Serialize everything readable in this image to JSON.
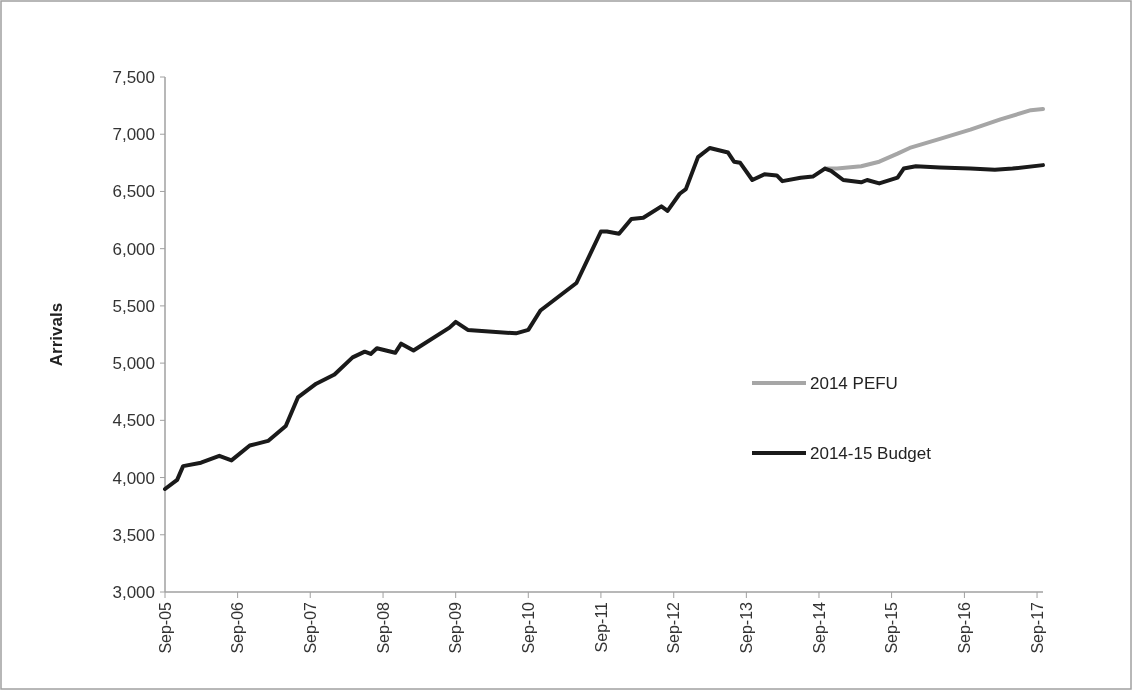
{
  "chart_data": {
    "type": "line",
    "ylabel": "Arrivals",
    "xlim": [
      "2005-09",
      "2017-10"
    ],
    "xticks": [
      {
        "value": "2005-09",
        "label": "Sep-05"
      },
      {
        "value": "2006-09",
        "label": "Sep-06"
      },
      {
        "value": "2007-09",
        "label": "Sep-07"
      },
      {
        "value": "2008-09",
        "label": "Sep-08"
      },
      {
        "value": "2009-09",
        "label": "Sep-09"
      },
      {
        "value": "2010-09",
        "label": "Sep-10"
      },
      {
        "value": "2011-09",
        "label": "Sep-11"
      },
      {
        "value": "2012-09",
        "label": "Sep-12"
      },
      {
        "value": "2013-09",
        "label": "Sep-13"
      },
      {
        "value": "2014-09",
        "label": "Sep-14"
      },
      {
        "value": "2015-09",
        "label": "Sep-15"
      },
      {
        "value": "2016-09",
        "label": "Sep-16"
      },
      {
        "value": "2017-09",
        "label": "Sep-17"
      }
    ],
    "ylim": [
      3000,
      7500
    ],
    "yticks": [
      {
        "value": 3000,
        "label": "3,000"
      },
      {
        "value": 3500,
        "label": "3,500"
      },
      {
        "value": 4000,
        "label": "4,000"
      },
      {
        "value": 4500,
        "label": "4,500"
      },
      {
        "value": 5000,
        "label": "5,000"
      },
      {
        "value": 5500,
        "label": "5,500"
      },
      {
        "value": 6000,
        "label": "6,000"
      },
      {
        "value": 6500,
        "label": "6,500"
      },
      {
        "value": 7000,
        "label": "7,000"
      },
      {
        "value": 7500,
        "label": "7,500"
      }
    ],
    "grid": false,
    "legend": "right",
    "marker": "none",
    "line_style": "solid",
    "series": [
      {
        "name": "2014 PEFU",
        "color": "#a6a6a6",
        "x": [
          "2014-10",
          "2014-12",
          "2015-04",
          "2015-07",
          "2015-10",
          "2015-12",
          "2016-05",
          "2016-10",
          "2017-03",
          "2017-08",
          "2017-10"
        ],
        "values": [
          6700,
          6700,
          6720,
          6760,
          6830,
          6880,
          6960,
          7040,
          7130,
          7210,
          7220
        ]
      },
      {
        "name": "2014-15 Budget",
        "color": "#1a1a1a",
        "x": [
          "2005-09",
          "2005-11",
          "2005-12",
          "2006-03",
          "2006-06",
          "2006-08",
          "2006-11",
          "2007-02",
          "2007-05",
          "2007-07",
          "2007-10",
          "2008-01",
          "2008-04",
          "2008-06",
          "2008-07",
          "2008-08",
          "2008-11",
          "2008-12",
          "2009-02",
          "2009-08",
          "2009-09",
          "2009-11",
          "2010-07",
          "2010-09",
          "2010-11",
          "2011-05",
          "2011-09",
          "2011-10",
          "2011-12",
          "2012-02",
          "2012-04",
          "2012-07",
          "2012-08",
          "2012-10",
          "2012-11",
          "2013-01",
          "2013-03",
          "2013-06",
          "2013-07",
          "2013-08",
          "2013-10",
          "2013-12",
          "2014-02",
          "2014-03",
          "2014-06",
          "2014-08",
          "2014-10",
          "2014-11",
          "2015-01",
          "2015-04",
          "2015-05",
          "2015-07",
          "2015-10",
          "2015-11",
          "2016-01",
          "2016-05",
          "2016-10",
          "2017-02",
          "2017-05",
          "2017-10"
        ],
        "values": [
          3900,
          3980,
          4100,
          4130,
          4190,
          4150,
          4280,
          4320,
          4450,
          4700,
          4820,
          4900,
          5050,
          5100,
          5080,
          5130,
          5090,
          5170,
          5110,
          5310,
          5360,
          5290,
          5260,
          5290,
          5460,
          5700,
          6150,
          6150,
          6130,
          6260,
          6270,
          6370,
          6330,
          6480,
          6520,
          6800,
          6880,
          6840,
          6760,
          6750,
          6600,
          6650,
          6640,
          6590,
          6620,
          6630,
          6700,
          6680,
          6600,
          6580,
          6600,
          6570,
          6620,
          6700,
          6720,
          6710,
          6700,
          6690,
          6700,
          6730
        ]
      }
    ]
  }
}
